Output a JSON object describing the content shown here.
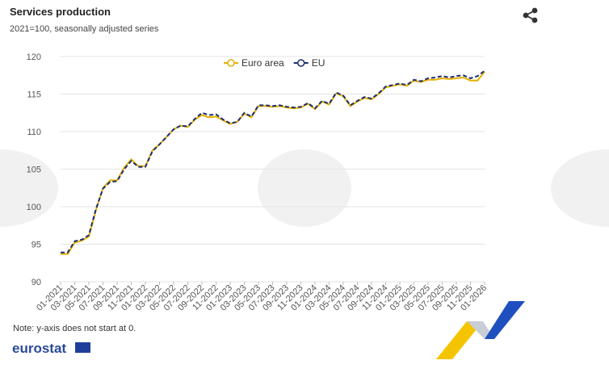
{
  "chart_data": {
    "type": "line",
    "title": "Services production",
    "subtitle": "2021=100, seasonally adjusted series",
    "note": "Note: y-axis does not start at 0.",
    "logo_text": "eurostat",
    "categories": [
      "01-2021",
      null,
      "03-2021",
      null,
      "05-2021",
      null,
      "07-2021",
      null,
      "09-2021",
      null,
      "11-2021",
      null,
      "01-2022",
      null,
      "03-2022",
      null,
      "05-2022",
      null,
      "07-2022",
      null,
      "09-2022",
      null,
      "11-2022",
      null,
      "01-2023",
      null,
      "03-2023",
      null,
      "05-2023",
      null,
      "07-2023",
      null,
      "09-2023",
      null,
      "11-2023",
      null,
      "01-2024",
      null,
      "03-2024",
      null,
      "05-2024",
      null,
      "07-2024",
      null,
      "09-2024",
      null,
      "11-2024",
      null,
      "01-2025",
      null,
      "03-2025",
      null,
      "05-2025",
      null,
      "07-2025",
      null,
      "09-2025",
      null,
      "11-2025",
      null,
      "01-2026"
    ],
    "series": [
      {
        "name": "Euro area",
        "color": "#e6ae00",
        "dashed": false,
        "values": [
          93.7,
          93.7,
          95.2,
          95.5,
          96.0,
          99.5,
          102.5,
          103.5,
          103.5,
          105.2,
          106.3,
          105.4,
          105.4,
          107.5,
          108.3,
          109.3,
          110.3,
          110.8,
          110.6,
          111.6,
          112.2,
          111.9,
          112.0,
          111.5,
          111.0,
          111.3,
          112.4,
          111.9,
          113.4,
          113.4,
          113.3,
          113.4,
          113.2,
          113.1,
          113.2,
          113.7,
          113.0,
          114.0,
          113.6,
          115.1,
          114.7,
          113.4,
          114.0,
          114.5,
          114.3,
          115.0,
          115.9,
          116.1,
          116.3,
          116.1,
          116.8,
          116.6,
          116.9,
          116.9,
          117.1,
          117.0,
          117.1,
          117.2,
          116.8,
          116.8,
          118.0
        ]
      },
      {
        "name": "EU",
        "color": "#1b2f74",
        "dashed": true,
        "values": [
          93.9,
          93.9,
          95.4,
          95.6,
          96.2,
          99.7,
          102.4,
          103.3,
          103.4,
          105.0,
          106.1,
          105.3,
          105.3,
          107.4,
          108.3,
          109.3,
          110.3,
          110.8,
          110.7,
          111.7,
          112.5,
          112.2,
          112.3,
          111.6,
          111.1,
          111.3,
          112.5,
          112.0,
          113.5,
          113.5,
          113.4,
          113.5,
          113.3,
          113.2,
          113.3,
          113.8,
          113.1,
          114.1,
          113.7,
          115.2,
          114.8,
          113.5,
          114.1,
          114.6,
          114.4,
          115.1,
          116.0,
          116.2,
          116.4,
          116.2,
          116.9,
          116.7,
          117.1,
          117.2,
          117.4,
          117.2,
          117.4,
          117.5,
          117.1,
          117.4,
          118.1
        ]
      }
    ],
    "ylim": [
      90,
      120
    ],
    "yticks": [
      90,
      95,
      100,
      105,
      110,
      115,
      120
    ],
    "grid": true
  }
}
